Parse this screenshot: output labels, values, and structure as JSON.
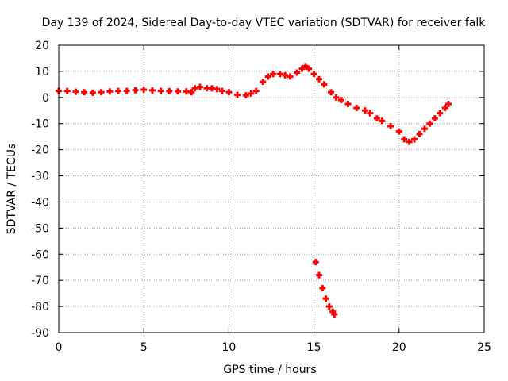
{
  "chart_data": {
    "type": "scatter",
    "title": "Day 139 of 2024, Sidereal Day-to-day VTEC variation (SDTVAR) for receiver falk",
    "xlabel": "GPS time / hours",
    "ylabel": "SDTVAR / TECUs",
    "xlim": [
      0,
      25
    ],
    "ylim": [
      -90,
      20
    ],
    "xticks": [
      0,
      5,
      10,
      15,
      20,
      25
    ],
    "yticks": [
      20,
      10,
      0,
      -10,
      -20,
      -30,
      -40,
      -50,
      -60,
      -70,
      -80,
      -90
    ],
    "grid": true,
    "series": [
      {
        "name": "SDTVAR",
        "color": "#ff0000",
        "marker": "plus",
        "points": [
          [
            0.0,
            2.5
          ],
          [
            0.5,
            2.5
          ],
          [
            1.0,
            2.2
          ],
          [
            1.5,
            2.0
          ],
          [
            2.0,
            1.8
          ],
          [
            2.5,
            2.0
          ],
          [
            3.0,
            2.3
          ],
          [
            3.5,
            2.5
          ],
          [
            4.0,
            2.5
          ],
          [
            4.5,
            2.8
          ],
          [
            5.0,
            3.0
          ],
          [
            5.5,
            2.7
          ],
          [
            6.0,
            2.5
          ],
          [
            6.5,
            2.4
          ],
          [
            7.0,
            2.3
          ],
          [
            7.5,
            2.3
          ],
          [
            7.8,
            2.0
          ],
          [
            8.0,
            3.5
          ],
          [
            8.3,
            4.0
          ],
          [
            8.7,
            3.5
          ],
          [
            9.0,
            3.5
          ],
          [
            9.3,
            3.2
          ],
          [
            9.6,
            2.5
          ],
          [
            10.0,
            2.0
          ],
          [
            10.5,
            1.0
          ],
          [
            11.0,
            0.8
          ],
          [
            11.3,
            1.5
          ],
          [
            11.6,
            2.5
          ],
          [
            12.0,
            6.0
          ],
          [
            12.3,
            8.0
          ],
          [
            12.6,
            9.0
          ],
          [
            13.0,
            9.0
          ],
          [
            13.3,
            8.5
          ],
          [
            13.6,
            8.0
          ],
          [
            14.0,
            9.5
          ],
          [
            14.3,
            11.0
          ],
          [
            14.5,
            12.0
          ],
          [
            14.7,
            11.0
          ],
          [
            15.0,
            9.0
          ],
          [
            15.3,
            7.0
          ],
          [
            15.6,
            5.0
          ],
          [
            16.0,
            2.0
          ],
          [
            16.3,
            0.0
          ],
          [
            16.6,
            -1.0
          ],
          [
            17.0,
            -2.5
          ],
          [
            17.5,
            -4.0
          ],
          [
            18.0,
            -5.0
          ],
          [
            18.3,
            -6.0
          ],
          [
            18.7,
            -8.0
          ],
          [
            19.0,
            -9.0
          ],
          [
            19.5,
            -11.0
          ],
          [
            20.0,
            -13.0
          ],
          [
            20.3,
            -16.0
          ],
          [
            20.6,
            -17.0
          ],
          [
            20.9,
            -16.0
          ],
          [
            21.2,
            -14.0
          ],
          [
            21.5,
            -12.0
          ],
          [
            21.8,
            -10.0
          ],
          [
            22.1,
            -8.0
          ],
          [
            22.4,
            -6.0
          ],
          [
            22.7,
            -4.0
          ],
          [
            22.9,
            -2.5
          ],
          [
            15.1,
            -63.0
          ],
          [
            15.3,
            -68.0
          ],
          [
            15.5,
            -73.0
          ],
          [
            15.7,
            -77.0
          ],
          [
            15.9,
            -80.0
          ],
          [
            16.1,
            -82.0
          ],
          [
            16.2,
            -83.0
          ]
        ]
      }
    ]
  }
}
